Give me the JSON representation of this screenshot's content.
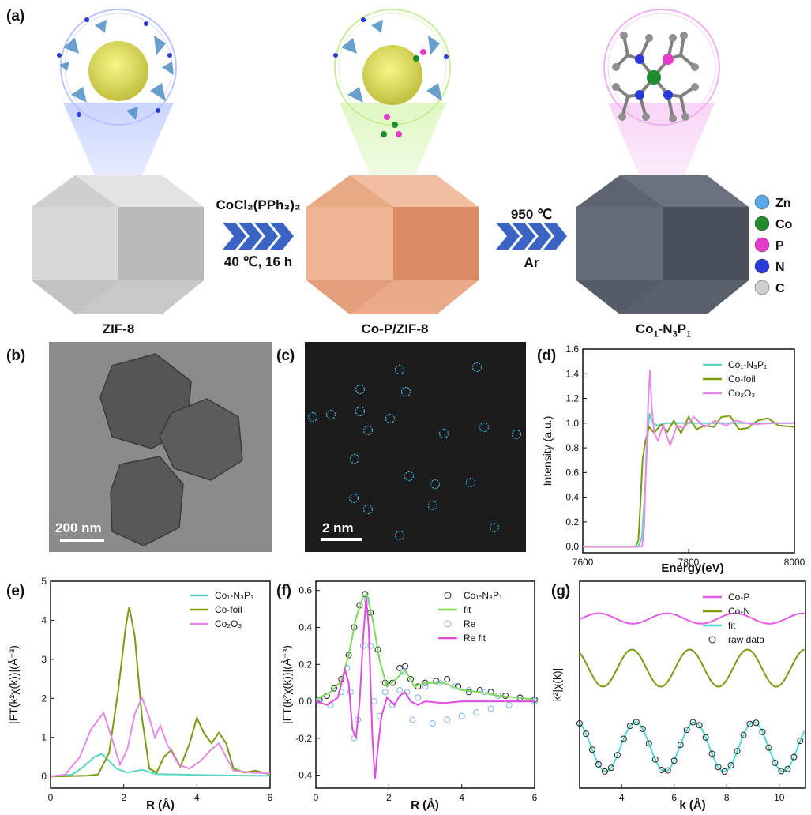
{
  "panel_labels": {
    "a": "(a)",
    "b": "(b)",
    "c": "(c)",
    "d": "(d)",
    "e": "(e)",
    "f": "(f)",
    "g": "(g)"
  },
  "schematic": {
    "stage1_label": "ZIF-8",
    "stage2_label": "Co-P/ZIF-8",
    "stage3_label_main": "Co",
    "stage3_sub1": "1",
    "stage3_mid": "-N",
    "stage3_sub2": "3",
    "stage3_mid2": "P",
    "stage3_sub3": "1",
    "step1_reagent": "CoCl₂(PPh₃)₂",
    "step1_condition": "40 ℃, 16 h",
    "step2_temp": "950 ℃",
    "step2_atm": "Ar",
    "legend": [
      {
        "label": "Zn",
        "color": "#5aa9e6"
      },
      {
        "label": "Co",
        "color": "#1f8a2e"
      },
      {
        "label": "P",
        "color": "#e23cc8"
      },
      {
        "label": "N",
        "color": "#2a3ad6"
      },
      {
        "label": "C",
        "color": "#cfcfcf"
      }
    ],
    "colors": {
      "zif": "#c9c9c9",
      "cop": "#e4a17e",
      "co1": "#5b6170"
    }
  },
  "tem": {
    "scalebar": "200 nm"
  },
  "haadf": {
    "scalebar": "2 nm"
  },
  "chart_data": [
    {
      "panel": "d",
      "type": "line",
      "xlabel": "Energy(eV)",
      "ylabel": "Intensity (a.u.)",
      "xlim": [
        7600,
        8000
      ],
      "ylim": [
        -0.05,
        1.6
      ],
      "xticks": [
        "7600",
        "7800",
        "8000"
      ],
      "yticks": [
        "0.0",
        "0.2",
        "0.4",
        "0.6",
        "0.8",
        "1.0",
        "1.2",
        "1.4",
        "1.6"
      ],
      "series": [
        {
          "name": "Co₁-N₃P₁",
          "color": "#59d6c0",
          "points": [
            [
              7600,
              0
            ],
            [
              7705,
              0
            ],
            [
              7712,
              0.08
            ],
            [
              7718,
              0.5
            ],
            [
              7722,
              0.85
            ],
            [
              7726,
              1.08
            ],
            [
              7730,
              1.02
            ],
            [
              7740,
              0.98
            ],
            [
              7760,
              1.0
            ],
            [
              7800,
              1.0
            ],
            [
              8000,
              1.0
            ]
          ]
        },
        {
          "name": "Co-foil",
          "color": "#7a9a10",
          "points": [
            [
              7600,
              0
            ],
            [
              7700,
              0
            ],
            [
              7705,
              0.05
            ],
            [
              7709,
              0.35
            ],
            [
              7713,
              0.7
            ],
            [
              7718,
              0.85
            ],
            [
              7725,
              0.97
            ],
            [
              7735,
              0.92
            ],
            [
              7748,
              0.99
            ],
            [
              7760,
              0.93
            ],
            [
              7772,
              1.02
            ],
            [
              7786,
              0.92
            ],
            [
              7800,
              1.05
            ],
            [
              7815,
              0.95
            ],
            [
              7830,
              0.98
            ],
            [
              7848,
              0.97
            ],
            [
              7862,
              1.05
            ],
            [
              7878,
              1.06
            ],
            [
              7895,
              0.95
            ],
            [
              7912,
              0.96
            ],
            [
              7930,
              1.02
            ],
            [
              7950,
              1.04
            ],
            [
              7970,
              0.98
            ],
            [
              8000,
              0.97
            ]
          ]
        },
        {
          "name": "Co₂O₃",
          "color": "#e58ae6",
          "points": [
            [
              7600,
              0
            ],
            [
              7712,
              0
            ],
            [
              7716,
              0.15
            ],
            [
              7720,
              0.75
            ],
            [
              7724,
              1.2
            ],
            [
              7727,
              1.43
            ],
            [
              7730,
              1.15
            ],
            [
              7735,
              0.92
            ],
            [
              7742,
              0.86
            ],
            [
              7752,
              0.98
            ],
            [
              7765,
              0.82
            ],
            [
              7778,
              0.98
            ],
            [
              7790,
              0.96
            ],
            [
              7810,
              1.05
            ],
            [
              7830,
              0.97
            ],
            [
              7850,
              1.02
            ],
            [
              7870,
              0.98
            ],
            [
              7890,
              1.02
            ],
            [
              7920,
              0.99
            ],
            [
              7960,
              1.0
            ],
            [
              8000,
              1.0
            ]
          ]
        }
      ]
    },
    {
      "panel": "e",
      "type": "line",
      "xlabel": "R (Å)",
      "ylabel": "|FT(k²χ(k))|(Å⁻³)",
      "xlim": [
        0,
        6
      ],
      "ylim": [
        -0.3,
        5
      ],
      "xticks": [
        "0",
        "2",
        "4",
        "6"
      ],
      "yticks": [
        "0",
        "1",
        "2",
        "3",
        "4",
        "5"
      ],
      "series": [
        {
          "name": "Co₁-N₃P₁",
          "color": "#59d6c0",
          "points": [
            [
              0,
              0
            ],
            [
              0.6,
              0.05
            ],
            [
              0.9,
              0.25
            ],
            [
              1.2,
              0.5
            ],
            [
              1.4,
              0.58
            ],
            [
              1.6,
              0.4
            ],
            [
              1.8,
              0.2
            ],
            [
              2.1,
              0.1
            ],
            [
              2.5,
              0.17
            ],
            [
              2.9,
              0.06
            ],
            [
              3.5,
              0.05
            ],
            [
              4.5,
              0.03
            ],
            [
              5.5,
              0.02
            ],
            [
              6,
              0.02
            ]
          ]
        },
        {
          "name": "Co-foil",
          "color": "#7a9a10",
          "points": [
            [
              0,
              0
            ],
            [
              1,
              0.02
            ],
            [
              1.3,
              0.05
            ],
            [
              1.6,
              0.6
            ],
            [
              1.85,
              2.2
            ],
            [
              2.05,
              3.8
            ],
            [
              2.15,
              4.35
            ],
            [
              2.3,
              3.6
            ],
            [
              2.5,
              1.5
            ],
            [
              2.7,
              0.2
            ],
            [
              2.9,
              0.1
            ],
            [
              3.1,
              0.5
            ],
            [
              3.3,
              0.68
            ],
            [
              3.55,
              0.25
            ],
            [
              3.8,
              0.85
            ],
            [
              4.0,
              1.5
            ],
            [
              4.2,
              1.1
            ],
            [
              4.4,
              0.85
            ],
            [
              4.6,
              1.12
            ],
            [
              4.8,
              0.85
            ],
            [
              5.0,
              0.2
            ],
            [
              5.3,
              0.1
            ],
            [
              5.6,
              0.15
            ],
            [
              6,
              0.05
            ]
          ]
        },
        {
          "name": "Co₂O₃",
          "color": "#e58ae6",
          "points": [
            [
              0,
              0
            ],
            [
              0.4,
              0.05
            ],
            [
              0.8,
              0.5
            ],
            [
              1.1,
              1.2
            ],
            [
              1.45,
              1.63
            ],
            [
              1.7,
              0.9
            ],
            [
              1.9,
              0.3
            ],
            [
              2.1,
              0.7
            ],
            [
              2.3,
              1.6
            ],
            [
              2.5,
              2.02
            ],
            [
              2.7,
              1.5
            ],
            [
              2.85,
              1.0
            ],
            [
              3.0,
              1.3
            ],
            [
              3.2,
              0.8
            ],
            [
              3.5,
              0.3
            ],
            [
              3.8,
              0.2
            ],
            [
              4.1,
              0.4
            ],
            [
              4.4,
              0.7
            ],
            [
              4.6,
              0.85
            ],
            [
              4.8,
              0.5
            ],
            [
              5.0,
              0.15
            ],
            [
              5.5,
              0.1
            ],
            [
              6,
              0.08
            ]
          ]
        }
      ]
    },
    {
      "panel": "f",
      "type": "line",
      "xlabel": "R (Å)",
      "ylabel": "|FT(k²χ(k))|(Å⁻³)",
      "xlim": [
        0,
        6
      ],
      "ylim": [
        -0.47,
        0.65
      ],
      "xticks": [
        "0",
        "2",
        "4",
        "6"
      ],
      "yticks": [
        "-0.4",
        "-0.2",
        "0.0",
        "0.2",
        "0.4",
        "0.6"
      ],
      "series": [
        {
          "name": "Co₁-N₃P₁",
          "color": "#222222",
          "style": "circle",
          "points": [
            [
              0.1,
              0.01
            ],
            [
              0.3,
              0.03
            ],
            [
              0.5,
              0.07
            ],
            [
              0.7,
              0.12
            ],
            [
              0.9,
              0.25
            ],
            [
              1.05,
              0.4
            ],
            [
              1.2,
              0.52
            ],
            [
              1.35,
              0.58
            ],
            [
              1.5,
              0.48
            ],
            [
              1.7,
              0.28
            ],
            [
              1.9,
              0.1
            ],
            [
              2.1,
              0.1
            ],
            [
              2.3,
              0.18
            ],
            [
              2.45,
              0.19
            ],
            [
              2.6,
              0.12
            ],
            [
              2.8,
              0.08
            ],
            [
              3.0,
              0.1
            ],
            [
              3.3,
              0.11
            ],
            [
              3.6,
              0.12
            ],
            [
              3.9,
              0.08
            ],
            [
              4.2,
              0.05
            ],
            [
              4.5,
              0.06
            ],
            [
              4.8,
              0.05
            ],
            [
              5.2,
              0.03
            ],
            [
              5.6,
              0.02
            ],
            [
              6,
              0.01
            ]
          ]
        },
        {
          "name": "fit",
          "color": "#7ed957",
          "points": [
            [
              0,
              0.01
            ],
            [
              0.4,
              0.05
            ],
            [
              0.7,
              0.11
            ],
            [
              0.9,
              0.25
            ],
            [
              1.1,
              0.45
            ],
            [
              1.3,
              0.57
            ],
            [
              1.4,
              0.58
            ],
            [
              1.55,
              0.45
            ],
            [
              1.75,
              0.22
            ],
            [
              1.95,
              0.08
            ],
            [
              2.2,
              0.12
            ],
            [
              2.45,
              0.17
            ],
            [
              2.7,
              0.08
            ],
            [
              3.0,
              0.1
            ],
            [
              3.5,
              0.1
            ],
            [
              4.0,
              0.06
            ],
            [
              4.5,
              0.05
            ],
            [
              5.0,
              0.03
            ],
            [
              6,
              0.01
            ]
          ]
        },
        {
          "name": "Re",
          "color": "#7fb0e6",
          "style": "circle",
          "points": [
            [
              0.1,
              0
            ],
            [
              0.4,
              -0.02
            ],
            [
              0.7,
              0.05
            ],
            [
              0.85,
              0.18
            ],
            [
              0.95,
              0.05
            ],
            [
              1.05,
              -0.2
            ],
            [
              1.15,
              -0.1
            ],
            [
              1.3,
              0.3
            ],
            [
              1.4,
              0.55
            ],
            [
              1.5,
              0.3
            ],
            [
              1.6,
              0.0
            ],
            [
              1.75,
              -0.08
            ],
            [
              1.9,
              0.05
            ],
            [
              2.1,
              -0.02
            ],
            [
              2.3,
              0.06
            ],
            [
              2.4,
              0.16
            ],
            [
              2.5,
              0.05
            ],
            [
              2.65,
              -0.1
            ],
            [
              2.8,
              0.02
            ],
            [
              3.0,
              0.08
            ],
            [
              3.2,
              -0.12
            ],
            [
              3.4,
              0.1
            ],
            [
              3.6,
              -0.1
            ],
            [
              3.8,
              0.08
            ],
            [
              4.0,
              -0.08
            ],
            [
              4.2,
              0.06
            ],
            [
              4.4,
              -0.06
            ],
            [
              4.6,
              0.05
            ],
            [
              4.8,
              -0.04
            ],
            [
              5.0,
              0.03
            ],
            [
              5.3,
              -0.02
            ],
            [
              5.6,
              0.01
            ],
            [
              6,
              0
            ]
          ]
        },
        {
          "name": "Re fit",
          "color": "#e04ce0",
          "points": [
            [
              0,
              0
            ],
            [
              0.3,
              -0.02
            ],
            [
              0.6,
              0.02
            ],
            [
              0.8,
              0.17
            ],
            [
              0.9,
              0.1
            ],
            [
              1.0,
              -0.15
            ],
            [
              1.1,
              -0.2
            ],
            [
              1.2,
              0.0
            ],
            [
              1.3,
              0.35
            ],
            [
              1.38,
              0.56
            ],
            [
              1.45,
              0.4
            ],
            [
              1.55,
              -0.2
            ],
            [
              1.62,
              -0.42
            ],
            [
              1.7,
              -0.25
            ],
            [
              1.8,
              -0.08
            ],
            [
              1.95,
              0.02
            ],
            [
              2.15,
              -0.02
            ],
            [
              2.3,
              0.03
            ],
            [
              2.45,
              0.05
            ],
            [
              2.6,
              0.0
            ],
            [
              2.8,
              -0.02
            ],
            [
              3.0,
              0.0
            ],
            [
              3.5,
              -0.01
            ],
            [
              4.0,
              0.0
            ],
            [
              5.0,
              0.0
            ],
            [
              6,
              0
            ]
          ]
        }
      ]
    },
    {
      "panel": "g",
      "type": "line",
      "xlabel": "k (Å)",
      "ylabel": "k²|χ(k)|",
      "xlim": [
        2.4,
        11
      ],
      "ylim": [
        0,
        1
      ],
      "xticks": [
        "4",
        "6",
        "8",
        "10"
      ],
      "yticks": [],
      "series": [
        {
          "name": "Co-P",
          "color": "#e45be6",
          "offset": 0.82,
          "amp": 0.025,
          "period": 2.6,
          "phase": 0.3
        },
        {
          "name": "Co-N",
          "color": "#7a9a10",
          "offset": 0.58,
          "amp": 0.09,
          "period": 2.2,
          "phase": 1.6
        },
        {
          "name": "fit",
          "color": "#56d9cf",
          "offset": 0.2,
          "amp": 0.12,
          "period": 2.25,
          "phase": 1.5
        },
        {
          "name": "raw data",
          "color": "#222222",
          "style": "circle",
          "offset": 0.2,
          "amp": 0.12,
          "period": 2.25,
          "phase": 1.5
        }
      ]
    }
  ]
}
